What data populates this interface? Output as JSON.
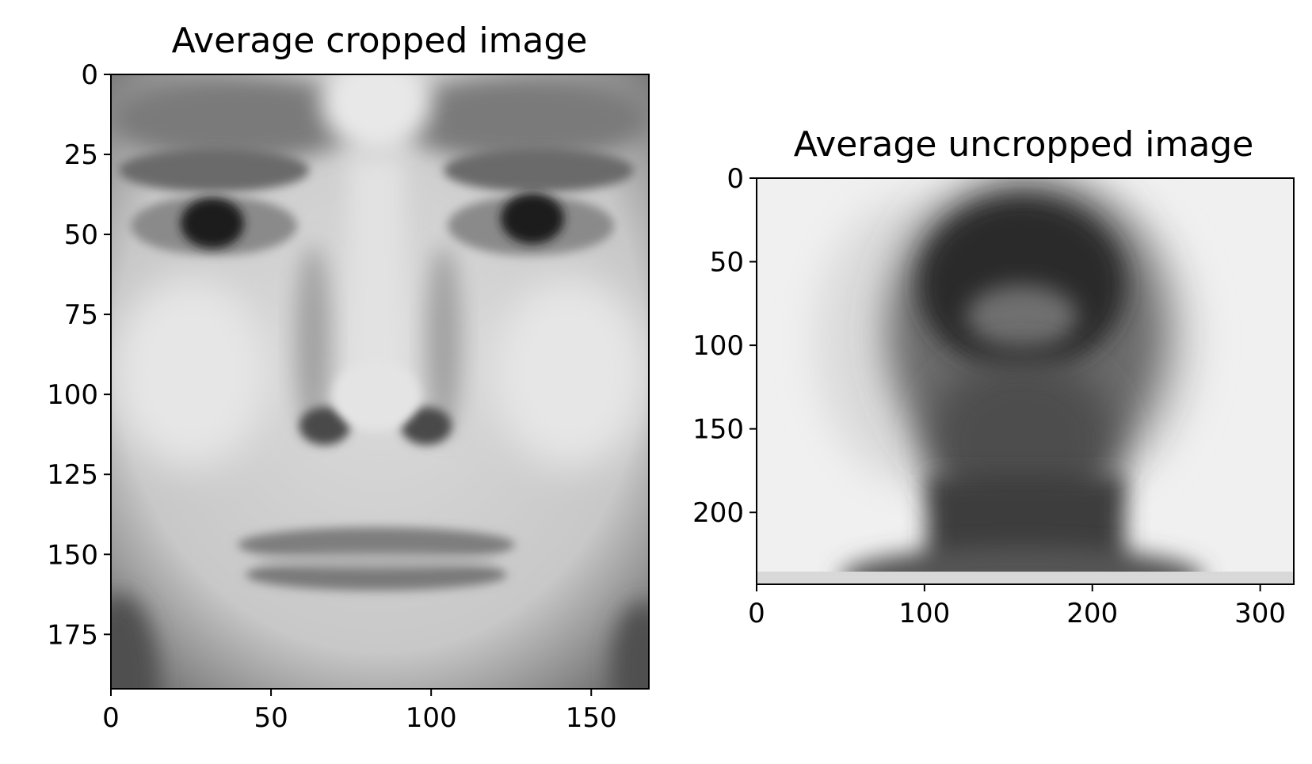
{
  "chart_data": [
    {
      "type": "heatmap",
      "title": "Average cropped image",
      "image_shape": [
        192,
        168
      ],
      "colormap": "gray",
      "xlim": [
        0,
        168
      ],
      "ylim": [
        192,
        0
      ],
      "x_ticks": [
        0,
        50,
        100,
        150
      ],
      "y_ticks": [
        0,
        25,
        50,
        75,
        100,
        125,
        150,
        175
      ],
      "grid": false
    },
    {
      "type": "heatmap",
      "title": "Average uncropped image",
      "image_shape": [
        243,
        320
      ],
      "colormap": "gray",
      "xlim": [
        0,
        320
      ],
      "ylim": [
        243,
        0
      ],
      "x_ticks": [
        0,
        100,
        200,
        300
      ],
      "y_ticks": [
        0,
        50,
        100,
        150,
        200
      ],
      "grid": false
    }
  ]
}
